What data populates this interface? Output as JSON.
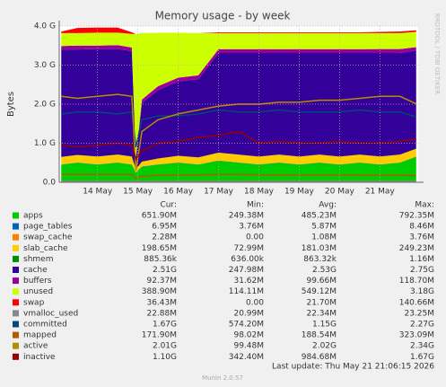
{
  "chart_data": {
    "type": "area",
    "title": "Memory usage - by week",
    "y_label": "Bytes",
    "side_label": "RRDTOOL / TOBI OETIKER",
    "legend_headers": [
      "Cur:",
      "Min:",
      "Avg:",
      "Max:"
    ],
    "last_update": "Last update: Thu May 21 21:06:15 2026",
    "footer": "Munin 2.0.57",
    "grid": true,
    "x": [
      13.1,
      13.5,
      14.0,
      14.5,
      14.85,
      14.95,
      15.1,
      15.5,
      16.0,
      16.5,
      17.0,
      17.5,
      18.0,
      18.5,
      19.0,
      19.5,
      20.0,
      20.5,
      21.0,
      21.5,
      21.9
    ],
    "xlim": [
      13.05,
      21.95
    ],
    "xticks": [
      {
        "value": 14,
        "label": "14 May"
      },
      {
        "value": 15,
        "label": "15 May"
      },
      {
        "value": 16,
        "label": "16 May"
      },
      {
        "value": 17,
        "label": "17 May"
      },
      {
        "value": 18,
        "label": "18 May"
      },
      {
        "value": 19,
        "label": "19 May"
      },
      {
        "value": 20,
        "label": "20 May"
      },
      {
        "value": 21,
        "label": "21 May"
      }
    ],
    "ylim": [
      0,
      4
    ],
    "yticks": [
      {
        "value": 0,
        "label": "0.0"
      },
      {
        "value": 1,
        "label": "1.0 G"
      },
      {
        "value": 2,
        "label": "2.0 G"
      },
      {
        "value": 3,
        "label": "3.0 G"
      },
      {
        "value": 4,
        "label": "4.0 G"
      }
    ],
    "series": [
      {
        "name": "apps",
        "color": "#00cc00",
        "stacked": true,
        "legend_values": [
          "651.90M",
          "249.38M",
          "485.23M",
          "792.35M"
        ],
        "values": [
          0.45,
          0.5,
          0.45,
          0.5,
          0.45,
          0.25,
          0.4,
          0.45,
          0.5,
          0.45,
          0.55,
          0.5,
          0.45,
          0.5,
          0.45,
          0.5,
          0.45,
          0.5,
          0.45,
          0.5,
          0.65
        ]
      },
      {
        "name": "page_tables",
        "color": "#0066b3",
        "stacked": true,
        "legend_values": [
          "6.95M",
          "3.76M",
          "5.87M",
          "8.46M"
        ],
        "values": [
          0.007,
          0.007,
          0.007,
          0.007,
          0.007,
          0.004,
          0.006,
          0.007,
          0.007,
          0.007,
          0.007,
          0.007,
          0.007,
          0.007,
          0.007,
          0.007,
          0.007,
          0.007,
          0.007,
          0.007,
          0.007
        ]
      },
      {
        "name": "swap_cache",
        "color": "#ff8000",
        "stacked": true,
        "legend_values": [
          "2.28M",
          "0.00",
          "1.08M",
          "3.76M"
        ],
        "values": [
          0.002,
          0.002,
          0.002,
          0.002,
          0.002,
          0,
          0.001,
          0.001,
          0.001,
          0.001,
          0.001,
          0.001,
          0.001,
          0.001,
          0.001,
          0.001,
          0.001,
          0.001,
          0.002,
          0.002,
          0.002
        ]
      },
      {
        "name": "slab_cache",
        "color": "#ffcc00",
        "stacked": true,
        "legend_values": [
          "198.65M",
          "72.99M",
          "181.03M",
          "249.23M"
        ],
        "values": [
          0.19,
          0.19,
          0.2,
          0.2,
          0.2,
          0.08,
          0.12,
          0.15,
          0.17,
          0.18,
          0.2,
          0.2,
          0.2,
          0.2,
          0.2,
          0.2,
          0.2,
          0.2,
          0.2,
          0.2,
          0.2
        ]
      },
      {
        "name": "shmem",
        "color": "#008f00",
        "stacked": true,
        "legend_values": [
          "885.36k",
          "636.00k",
          "863.32k",
          "1.16M"
        ],
        "values": [
          0.001,
          0.001,
          0.001,
          0.001,
          0.001,
          0.001,
          0.001,
          0.001,
          0.001,
          0.001,
          0.001,
          0.001,
          0.001,
          0.001,
          0.001,
          0.001,
          0.001,
          0.001,
          0.001,
          0.001,
          0.001
        ]
      },
      {
        "name": "cache",
        "color": "#330099",
        "stacked": true,
        "legend_values": [
          "2.51G",
          "247.98M",
          "2.53G",
          "2.75G"
        ],
        "values": [
          2.75,
          2.7,
          2.75,
          2.7,
          2.7,
          0.25,
          1.5,
          1.75,
          1.9,
          2.0,
          2.55,
          2.6,
          2.65,
          2.6,
          2.65,
          2.6,
          2.65,
          2.6,
          2.65,
          2.6,
          2.51
        ]
      },
      {
        "name": "buffers",
        "color": "#990099",
        "stacked": true,
        "legend_values": [
          "92.37M",
          "31.62M",
          "99.66M",
          "118.70M"
        ],
        "values": [
          0.09,
          0.1,
          0.09,
          0.1,
          0.09,
          0.03,
          0.09,
          0.1,
          0.1,
          0.1,
          0.1,
          0.1,
          0.1,
          0.1,
          0.1,
          0.1,
          0.1,
          0.1,
          0.1,
          0.1,
          0.09
        ]
      },
      {
        "name": "unused",
        "color": "#ccff00",
        "stacked": true,
        "legend_values": [
          "388.90M",
          "114.11M",
          "549.12M",
          "3.18G"
        ],
        "values": [
          0.33,
          0.32,
          0.33,
          0.32,
          0.35,
          3.18,
          1.7,
          1.37,
          1.15,
          1.08,
          0.41,
          0.41,
          0.41,
          0.41,
          0.41,
          0.41,
          0.41,
          0.41,
          0.41,
          0.41,
          0.39
        ]
      },
      {
        "name": "swap",
        "color": "#ff0000",
        "stacked": true,
        "legend_values": [
          "36.43M",
          "0.00",
          "21.70M",
          "140.66M"
        ],
        "values": [
          0.04,
          0.13,
          0.13,
          0.13,
          0.04,
          0,
          0,
          0,
          0,
          0,
          0.02,
          0.02,
          0.02,
          0.02,
          0.02,
          0.02,
          0.02,
          0.02,
          0.03,
          0.04,
          0.04
        ]
      },
      {
        "name": "vmalloc_used",
        "color": "#888888",
        "stacked": false,
        "legend_values": [
          "22.88M",
          "20.99M",
          "22.34M",
          "23.25M"
        ],
        "values": [
          0.022,
          0.022,
          0.022,
          0.022,
          0.022,
          0.021,
          0.022,
          0.022,
          0.022,
          0.022,
          0.022,
          0.022,
          0.022,
          0.022,
          0.022,
          0.022,
          0.022,
          0.022,
          0.022,
          0.022,
          0.022
        ]
      },
      {
        "name": "committed",
        "color": "#00487d",
        "stacked": false,
        "legend_values": [
          "1.67G",
          "574.20M",
          "1.15G",
          "2.27G"
        ],
        "values": [
          1.75,
          1.8,
          1.8,
          1.75,
          1.8,
          0.9,
          1.6,
          1.7,
          1.7,
          1.75,
          1.85,
          1.8,
          1.8,
          1.85,
          1.8,
          1.8,
          1.8,
          1.85,
          1.8,
          1.8,
          1.67
        ]
      },
      {
        "name": "mapped",
        "color": "#b35a00",
        "stacked": false,
        "legend_values": [
          "171.90M",
          "98.02M",
          "188.54M",
          "323.09M"
        ],
        "values": [
          0.2,
          0.2,
          0.2,
          0.2,
          0.2,
          0.1,
          0.15,
          0.18,
          0.19,
          0.19,
          0.2,
          0.2,
          0.19,
          0.19,
          0.19,
          0.19,
          0.19,
          0.19,
          0.18,
          0.18,
          0.17
        ]
      },
      {
        "name": "active",
        "color": "#b38f00",
        "stacked": false,
        "legend_values": [
          "2.01G",
          "99.48M",
          "2.02G",
          "2.34G"
        ],
        "values": [
          2.2,
          2.15,
          2.2,
          2.25,
          2.2,
          0.3,
          1.3,
          1.6,
          1.75,
          1.85,
          1.95,
          2.0,
          2.0,
          2.05,
          2.05,
          2.1,
          2.1,
          2.15,
          2.2,
          2.2,
          2.01
        ]
      },
      {
        "name": "inactive",
        "color": "#990000",
        "stacked": false,
        "legend_values": [
          "1.10G",
          "342.40M",
          "984.68M",
          "1.67G"
        ],
        "values": [
          0.95,
          0.9,
          0.95,
          1.0,
          0.95,
          0.6,
          0.8,
          1.0,
          1.05,
          1.15,
          1.2,
          1.3,
          1.0,
          1.05,
          1.0,
          1.0,
          1.05,
          1.0,
          1.0,
          1.05,
          1.1
        ]
      }
    ]
  }
}
